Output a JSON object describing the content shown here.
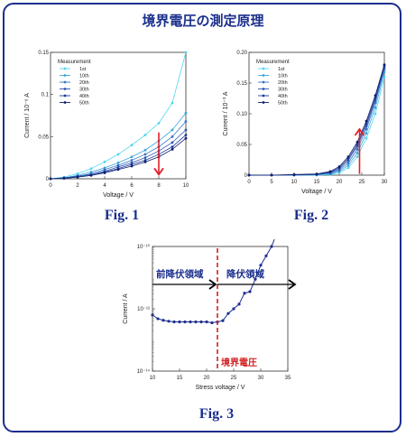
{
  "title": "境界電圧の測定原理",
  "figures": [
    {
      "label": "Fig. 1"
    },
    {
      "label": "Fig. 2"
    },
    {
      "label": "Fig. 3"
    }
  ],
  "colors": {
    "frame": "#1a2e8c",
    "label": "#1a2e8c",
    "arrow_red": "#e0202a",
    "dash_red": "#d42020",
    "series": [
      "#4fd6f0",
      "#3aa6dc",
      "#3a74c4",
      "#2f55b0",
      "#1d3a99",
      "#0e1f6b"
    ]
  },
  "chart_data": [
    {
      "type": "line",
      "figure": "Fig. 1",
      "xlabel": "Voltage / V",
      "ylabel": "Current / 10⁻⁶ A",
      "xlim": [
        0,
        10
      ],
      "ylim": [
        0,
        0.15
      ],
      "xticks": [
        0,
        2,
        4,
        6,
        8,
        10
      ],
      "yticks": [
        0,
        0.05,
        0.1,
        0.15
      ],
      "xtick_labels": [
        "0",
        "2",
        "4",
        "6",
        "8",
        "10"
      ],
      "ytick_labels": [
        "0",
        "0.05",
        "0.1",
        "0.15"
      ],
      "legend_title": "Measurement",
      "legend_position": "top-left",
      "series": [
        {
          "name": "1st",
          "x": [
            0,
            1,
            2,
            3,
            4,
            5,
            6,
            7,
            8,
            9,
            10
          ],
          "values": [
            0,
            0.002,
            0.006,
            0.012,
            0.02,
            0.029,
            0.04,
            0.052,
            0.066,
            0.09,
            0.15
          ]
        },
        {
          "name": "10th",
          "x": [
            0,
            1,
            2,
            3,
            4,
            5,
            6,
            7,
            8,
            9,
            10
          ],
          "values": [
            0,
            0.001,
            0.004,
            0.008,
            0.013,
            0.019,
            0.026,
            0.034,
            0.045,
            0.058,
            0.078
          ]
        },
        {
          "name": "20th",
          "x": [
            0,
            1,
            2,
            3,
            4,
            5,
            6,
            7,
            8,
            9,
            10
          ],
          "values": [
            0,
            0.001,
            0.003,
            0.006,
            0.011,
            0.016,
            0.022,
            0.029,
            0.038,
            0.05,
            0.068
          ]
        },
        {
          "name": "30th",
          "x": [
            0,
            1,
            2,
            3,
            4,
            5,
            6,
            7,
            8,
            9,
            10
          ],
          "values": [
            0,
            0.001,
            0.003,
            0.005,
            0.009,
            0.014,
            0.019,
            0.025,
            0.033,
            0.043,
            0.058
          ]
        },
        {
          "name": "40th",
          "x": [
            0,
            1,
            2,
            3,
            4,
            5,
            6,
            7,
            8,
            9,
            10
          ],
          "values": [
            0,
            0.0005,
            0.002,
            0.004,
            0.008,
            0.012,
            0.017,
            0.022,
            0.029,
            0.038,
            0.052
          ]
        },
        {
          "name": "50th",
          "x": [
            0,
            1,
            2,
            3,
            4,
            5,
            6,
            7,
            8,
            9,
            10
          ],
          "values": [
            0,
            0.0005,
            0.002,
            0.004,
            0.007,
            0.011,
            0.015,
            0.02,
            0.026,
            0.035,
            0.048
          ]
        }
      ],
      "annotations": [
        {
          "type": "arrow",
          "direction": "down",
          "color": "#e0202a",
          "from": [
            8,
            0.055
          ],
          "to": [
            8,
            0.005
          ]
        }
      ]
    },
    {
      "type": "line",
      "figure": "Fig. 2",
      "xlabel": "Voltage / V",
      "ylabel": "Current / 10⁻³ A",
      "xlim": [
        0,
        30
      ],
      "ylim": [
        0,
        0.2
      ],
      "xticks": [
        0,
        5,
        10,
        15,
        20,
        25,
        30
      ],
      "yticks": [
        0,
        0.05,
        0.1,
        0.15,
        0.2
      ],
      "xtick_labels": [
        "0",
        "5",
        "10",
        "15",
        "20",
        "25",
        "30"
      ],
      "ytick_labels": [
        "0",
        "0.05",
        "0.10",
        "0.15",
        "0.20"
      ],
      "legend_title": "Measurement",
      "legend_position": "top-left",
      "series": [
        {
          "name": "1st",
          "x": [
            0,
            5,
            10,
            15,
            18,
            20,
            22,
            24,
            26,
            28,
            30
          ],
          "values": [
            0,
            0,
            0,
            0,
            0.001,
            0.004,
            0.012,
            0.03,
            0.06,
            0.1,
            0.16
          ]
        },
        {
          "name": "10th",
          "x": [
            0,
            5,
            10,
            15,
            18,
            20,
            22,
            24,
            26,
            28,
            30
          ],
          "values": [
            0,
            0,
            0,
            0.0005,
            0.002,
            0.006,
            0.016,
            0.036,
            0.068,
            0.11,
            0.168
          ]
        },
        {
          "name": "20th",
          "x": [
            0,
            5,
            10,
            15,
            18,
            20,
            22,
            24,
            26,
            28,
            30
          ],
          "values": [
            0,
            0,
            0,
            0.001,
            0.003,
            0.008,
            0.02,
            0.042,
            0.075,
            0.118,
            0.172
          ]
        },
        {
          "name": "30th",
          "x": [
            0,
            5,
            10,
            15,
            18,
            20,
            22,
            24,
            26,
            28,
            30
          ],
          "values": [
            0,
            0,
            0.0005,
            0.001,
            0.004,
            0.01,
            0.024,
            0.047,
            0.08,
            0.122,
            0.175
          ]
        },
        {
          "name": "40th",
          "x": [
            0,
            5,
            10,
            15,
            18,
            20,
            22,
            24,
            26,
            28,
            30
          ],
          "values": [
            0,
            0,
            0.0005,
            0.0015,
            0.005,
            0.012,
            0.027,
            0.05,
            0.084,
            0.126,
            0.178
          ]
        },
        {
          "name": "50th",
          "x": [
            0,
            5,
            10,
            15,
            18,
            20,
            22,
            24,
            26,
            28,
            30
          ],
          "values": [
            0,
            0,
            0.001,
            0.002,
            0.006,
            0.014,
            0.03,
            0.054,
            0.088,
            0.13,
            0.18
          ]
        }
      ],
      "annotations": [
        {
          "type": "arrow",
          "direction": "up",
          "color": "#e0202a",
          "from": [
            24.5,
            0.002
          ],
          "to": [
            24.5,
            0.075
          ]
        }
      ]
    },
    {
      "type": "line",
      "figure": "Fig. 3",
      "xlabel": "Stress voltage / V",
      "ylabel": "Current / A",
      "xlim": [
        10,
        35
      ],
      "ylim_exponent": [
        -14,
        -10
      ],
      "yscale": "log",
      "xticks": [
        10,
        15,
        20,
        25,
        30,
        35
      ],
      "xtick_labels": [
        "10",
        "15",
        "20",
        "25",
        "30",
        "35"
      ],
      "yticks_exponent": [
        -14,
        -12,
        -10
      ],
      "ytick_labels": [
        "10⁻¹⁴",
        "10⁻¹²",
        "10⁻¹⁰"
      ],
      "series": [
        {
          "x": [
            10,
            11,
            12,
            13,
            14,
            15,
            16,
            17,
            18,
            19,
            20,
            21,
            22,
            23,
            24,
            25,
            26,
            27,
            28,
            29,
            30,
            31,
            32,
            33
          ],
          "log10_values": [
            -12.2,
            -12.32,
            -12.37,
            -12.4,
            -12.42,
            -12.42,
            -12.42,
            -12.42,
            -12.42,
            -12.42,
            -12.42,
            -12.45,
            -12.42,
            -12.38,
            -12.15,
            -12.0,
            -11.85,
            -11.5,
            -11.45,
            -11.05,
            -10.6,
            -10.3,
            -10.0,
            -9.55
          ]
        }
      ],
      "annotations": [
        {
          "type": "text",
          "text": "前降伏領域",
          "color": "#1a2e8c"
        },
        {
          "type": "text",
          "text": "降伏領域",
          "color": "#1a2e8c"
        },
        {
          "type": "text",
          "text": "境界電圧",
          "color": "#d42020"
        },
        {
          "type": "dashed_vline",
          "x": 22,
          "color": "#d42020"
        },
        {
          "type": "double_arrow_right",
          "color": "#000000"
        }
      ]
    }
  ]
}
